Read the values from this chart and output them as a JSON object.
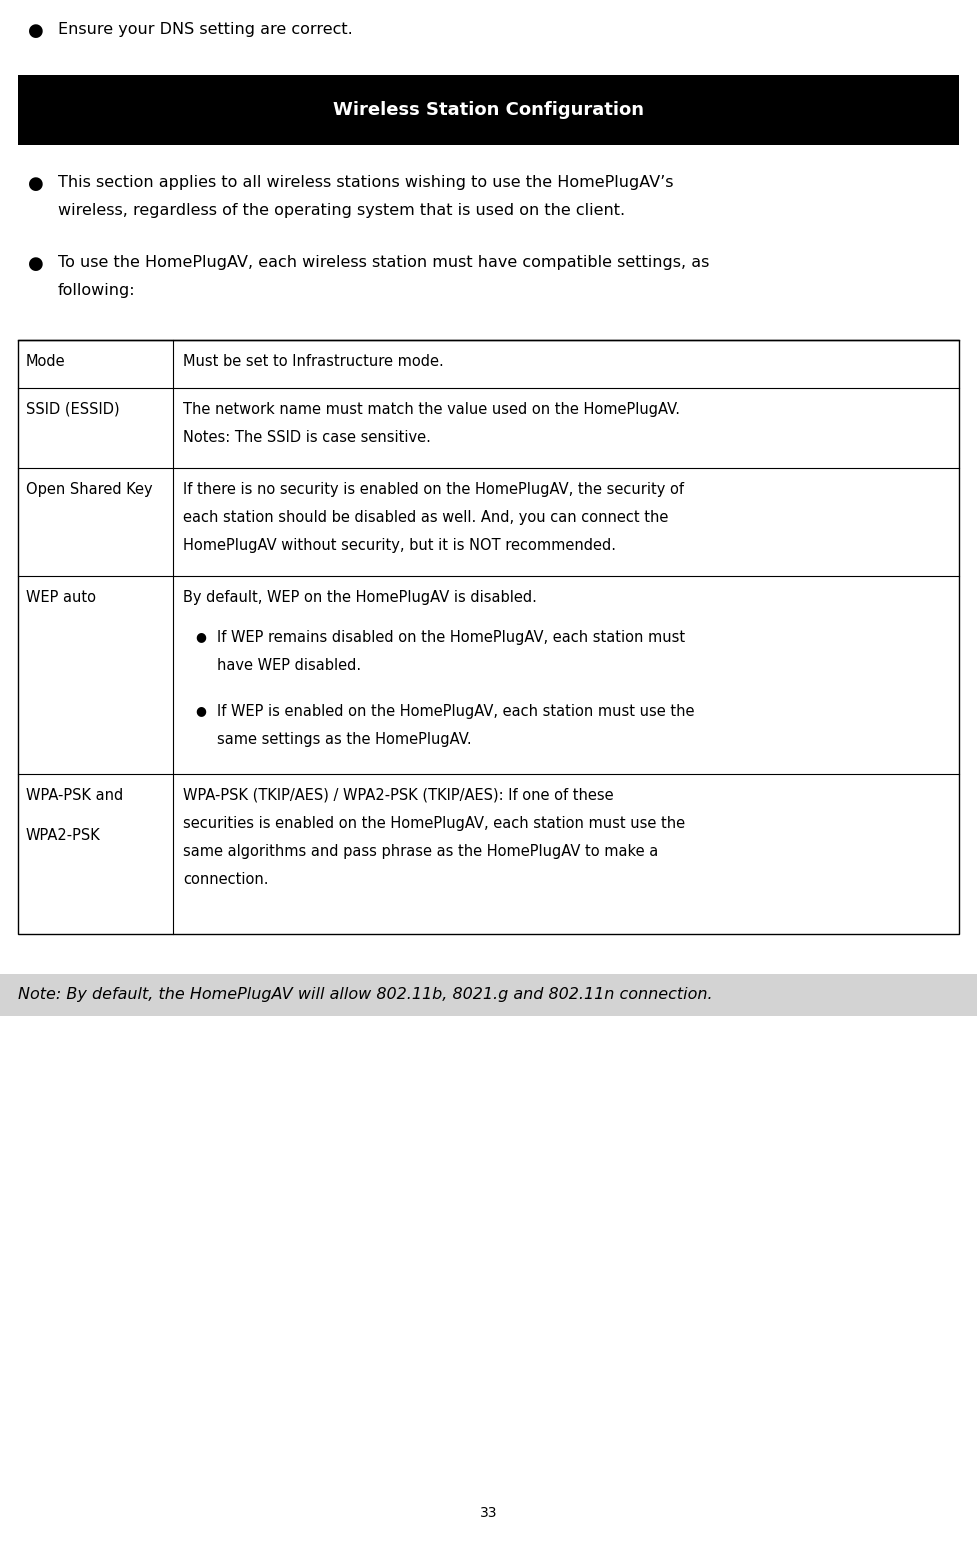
{
  "page_width": 9.77,
  "page_height": 15.48,
  "dpi": 100,
  "bg_color": "#ffffff",
  "header_bar_color": "#000000",
  "header_text": "Wireless Station Configuration",
  "header_text_color": "#ffffff",
  "header_text_size": 13,
  "bullet1": "Ensure your DNS setting are correct.",
  "intro_bullet1_line1": "This section applies to all wireless stations wishing to use the HomePlugAV’s",
  "intro_bullet1_line2": "wireless, regardless of the operating system that is used on the client.",
  "intro_bullet2_line1": "To use the HomePlugAV, each wireless station must have compatible settings, as",
  "intro_bullet2_line2": "following:",
  "note_text": "Note: By default, the HomePlugAV will allow 802.11b, 8021.g and 802.11n connection.",
  "note_bg_color": "#d3d3d3",
  "page_number": "33",
  "font_size_body": 11.5,
  "font_size_table": 10.5,
  "table_border_color": "#000000",
  "bullet_color": "#000000",
  "text_color": "#000000"
}
